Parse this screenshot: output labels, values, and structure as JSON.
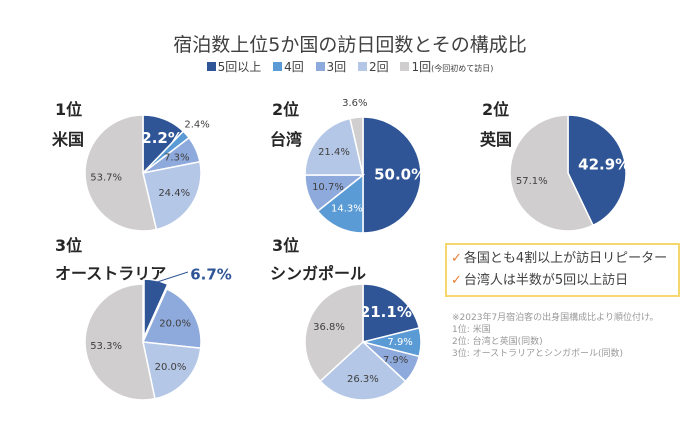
{
  "chart_data": {
    "type": "pie",
    "title": "宿泊数上位5か国の訪日回数とその構成比",
    "legend": [
      {
        "label": "5回以上",
        "color": "#2F5597"
      },
      {
        "label": "4回",
        "color": "#5B9BD5"
      },
      {
        "label": "3回",
        "color": "#8EA9DB"
      },
      {
        "label": "2回",
        "color": "#B4C7E7"
      },
      {
        "label": "1回",
        "note": "(今回初めて訪日)",
        "color": "#D0CECE"
      }
    ],
    "charts": [
      {
        "rank": "1位",
        "country": "米国",
        "values": [
          12.2,
          2.4,
          7.3,
          24.4,
          53.7
        ],
        "labels": [
          "12.2%",
          "2.4%",
          "7.3%",
          "24.4%",
          "53.7%"
        ]
      },
      {
        "rank": "2位",
        "country": "台湾",
        "values": [
          50.0,
          14.3,
          10.7,
          21.4,
          3.6
        ],
        "labels": [
          "50.0%",
          "14.3%",
          "10.7%",
          "21.4%",
          "3.6%"
        ]
      },
      {
        "rank": "2位",
        "country": "英国",
        "values": [
          42.9,
          0,
          0,
          0,
          57.1
        ],
        "labels": [
          "42.9%",
          "",
          "",
          "",
          "57.1%"
        ]
      },
      {
        "rank": "3位",
        "country": "オーストラリア",
        "values": [
          6.7,
          0,
          20.0,
          20.0,
          53.3
        ],
        "labels": [
          "6.7%",
          "",
          "20.0%",
          "20.0%",
          "53.3%"
        ]
      },
      {
        "rank": "3位",
        "country": "シンガポール",
        "values": [
          21.1,
          7.9,
          7.9,
          26.3,
          36.8
        ],
        "labels": [
          "21.1%",
          "7.9%",
          "7.9%",
          "26.3%",
          "36.8%"
        ]
      }
    ]
  },
  "notes": {
    "check1": "各国とも4割以上が訪日リピーター",
    "check2": "台湾人は半数が5回以上訪日"
  },
  "footnote": [
    "※2023年7月宿泊客の出身国構成比より順位付け。",
    "1位: 米国",
    "2位: 台湾と英国(同数)",
    "3位: オーストラリアとシンガポール(同数)"
  ]
}
